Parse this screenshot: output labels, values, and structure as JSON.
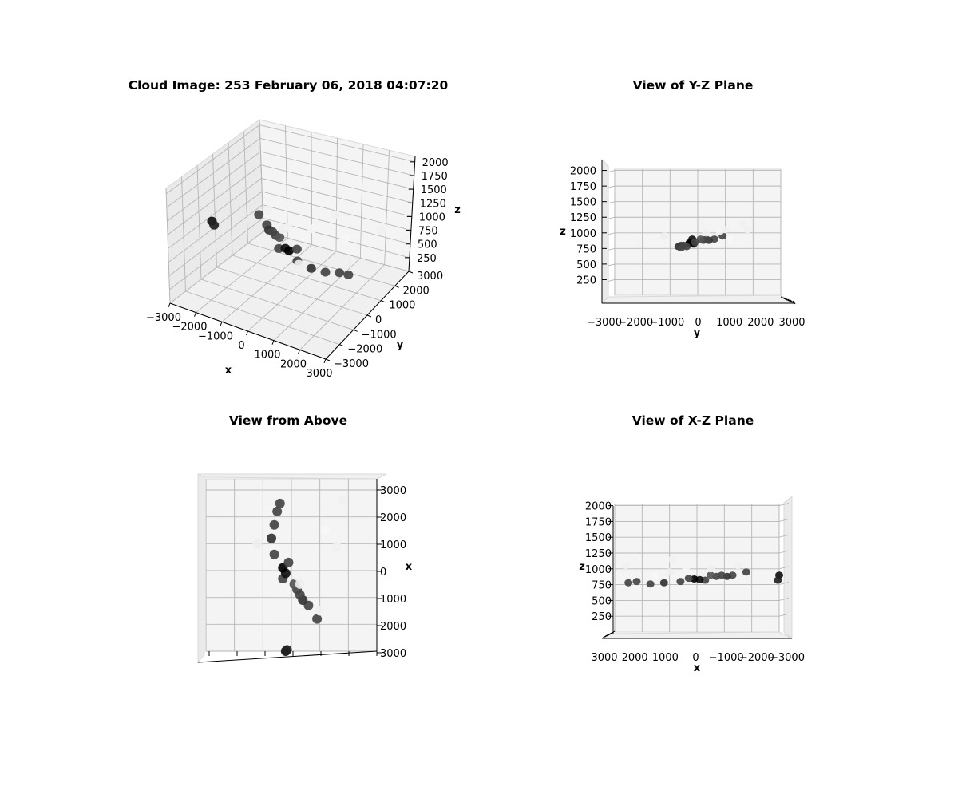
{
  "chart_data": [
    {
      "type": "scatter",
      "panel": "perspective",
      "title": "Cloud Image: 253 February 06, 2018 04:07:20",
      "xlabel": "x",
      "ylabel": "y",
      "zlabel": "z",
      "xticks": [
        "−3000",
        "−2000",
        "−1000",
        "0",
        "1000",
        "2000",
        "3000"
      ],
      "yticks": [
        "−3000",
        "−2000",
        "−1000",
        "0",
        "1000",
        "2000",
        "3000"
      ],
      "zticks": [
        "250",
        "500",
        "750",
        "1000",
        "1250",
        "1500",
        "1750",
        "2000"
      ],
      "xlim": [
        -3000,
        3000
      ],
      "ylim": [
        -3000,
        3000
      ],
      "zlim": [
        0,
        2000
      ],
      "grid": true
    },
    {
      "type": "scatter",
      "panel": "yz-plane",
      "title": "View of Y-Z Plane",
      "xlabel": "y",
      "ylabel": "z",
      "xticks": [
        "−3000",
        "−2000",
        "−1000",
        "0",
        "1000",
        "2000",
        "3000"
      ],
      "yticks": [
        "250",
        "500",
        "750",
        "1000",
        "1250",
        "1500",
        "1750",
        "2000"
      ],
      "grid": true
    },
    {
      "type": "scatter",
      "panel": "top-view",
      "title": "View from Above",
      "ylabel": "x",
      "yticks": [
        "3000",
        "2000",
        "1000",
        "0",
        "1000",
        "2000",
        "3000"
      ],
      "grid": true
    },
    {
      "type": "scatter",
      "panel": "xz-plane",
      "title": "View of X-Z Plane",
      "xlabel": "x",
      "ylabel": "z",
      "xticks": [
        "3000",
        "2000",
        "1000",
        "0",
        "−1000",
        "−2000",
        "−3000"
      ],
      "yticks": [
        "250",
        "500",
        "750",
        "1000",
        "1250",
        "1500",
        "1750",
        "2000"
      ],
      "grid": true
    }
  ],
  "points": [
    {
      "x": -3000,
      "y": -200,
      "z": 900,
      "shade": "#111111"
    },
    {
      "x": -2950,
      "y": -150,
      "z": 820,
      "shade": "#222222"
    },
    {
      "x": -1800,
      "y": 900,
      "z": 950,
      "shade": "#444444"
    },
    {
      "x": -1300,
      "y": 600,
      "z": 900,
      "shade": "#444444"
    },
    {
      "x": -1100,
      "y": 400,
      "z": 880,
      "shade": "#333333"
    },
    {
      "x": -900,
      "y": 300,
      "z": 900,
      "shade": "#444444"
    },
    {
      "x": -700,
      "y": 200,
      "z": 880,
      "shade": "#444444"
    },
    {
      "x": -500,
      "y": 100,
      "z": 900,
      "shade": "#555555"
    },
    {
      "x": -300,
      "y": -300,
      "z": 820,
      "shade": "#444444"
    },
    {
      "x": -100,
      "y": -200,
      "z": 830,
      "shade": "#111111"
    },
    {
      "x": 100,
      "y": -300,
      "z": 840,
      "shade": "#000000"
    },
    {
      "x": 300,
      "y": -100,
      "z": 850,
      "shade": "#444444"
    },
    {
      "x": 600,
      "y": -600,
      "z": 800,
      "shade": "#444444"
    },
    {
      "x": 1200,
      "y": -700,
      "z": 780,
      "shade": "#333333"
    },
    {
      "x": 1700,
      "y": -600,
      "z": 760,
      "shade": "#444444"
    },
    {
      "x": 2200,
      "y": -500,
      "z": 800,
      "shade": "#444444"
    },
    {
      "x": 2500,
      "y": -400,
      "z": 780,
      "shade": "#444444"
    },
    {
      "x": -1500,
      "y": 1000,
      "z": 1050,
      "shade": "#f0f0f0"
    },
    {
      "x": -500,
      "y": 300,
      "z": 1000,
      "shade": "#eeeeee"
    },
    {
      "x": 400,
      "y": 800,
      "z": 1020,
      "shade": "#f4f4f4"
    },
    {
      "x": 900,
      "y": 1600,
      "z": 1150,
      "shade": "#f0f0f0"
    },
    {
      "x": 1500,
      "y": 1200,
      "z": 900,
      "shade": "#f6f6f6"
    },
    {
      "x": -200,
      "y": 200,
      "z": 1100,
      "shade": "#f2f2f2"
    },
    {
      "x": 2600,
      "y": 1800,
      "z": 1050,
      "shade": "#f0f0f0"
    },
    {
      "x": 1000,
      "y": -1200,
      "z": 950,
      "shade": "#eeeeee"
    }
  ]
}
